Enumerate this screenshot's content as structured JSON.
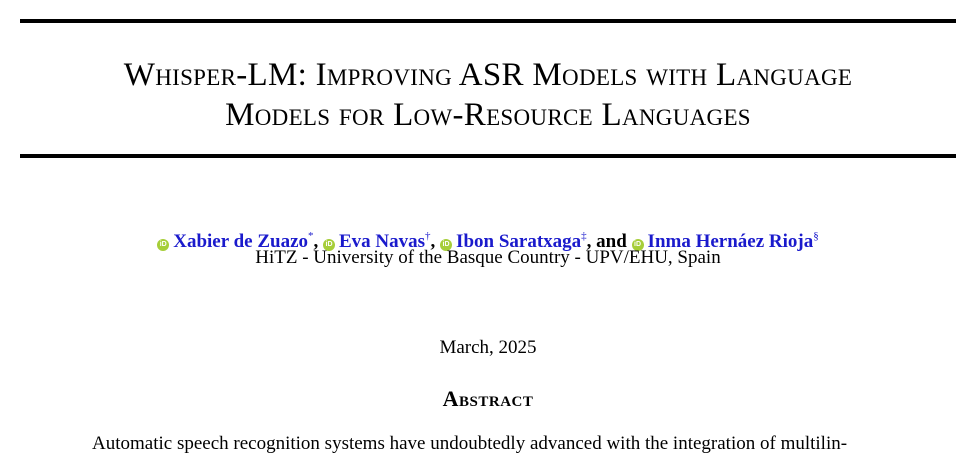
{
  "title": {
    "line1": "Whisper-LM: Improving ASR Models with Language",
    "line2": "Models for Low-Resource Languages"
  },
  "authors": [
    {
      "name": "Xabier de Zuazo",
      "mark": "*",
      "icon": "orcid-icon"
    },
    {
      "name": "Eva Navas",
      "mark": "†",
      "icon": "orcid-icon"
    },
    {
      "name": "Ibon Saratxaga",
      "mark": "‡",
      "icon": "orcid-icon"
    },
    {
      "name": "Inma Hernáez Rioja",
      "mark": "§",
      "icon": "orcid-icon"
    }
  ],
  "author_separators": {
    "comma": ",",
    "and": ", and"
  },
  "orcid_glyph": "iD",
  "affiliation": "HiTZ - University of the Basque Country - UPV/EHU, Spain",
  "date": "March, 2025",
  "abstract": {
    "heading": "Abstract",
    "first_line": "Automatic speech recognition systems have undoubtedly advanced with the integration of multilin-"
  },
  "colors": {
    "link": "#1a1acc",
    "orcid": "#a6ce39"
  }
}
